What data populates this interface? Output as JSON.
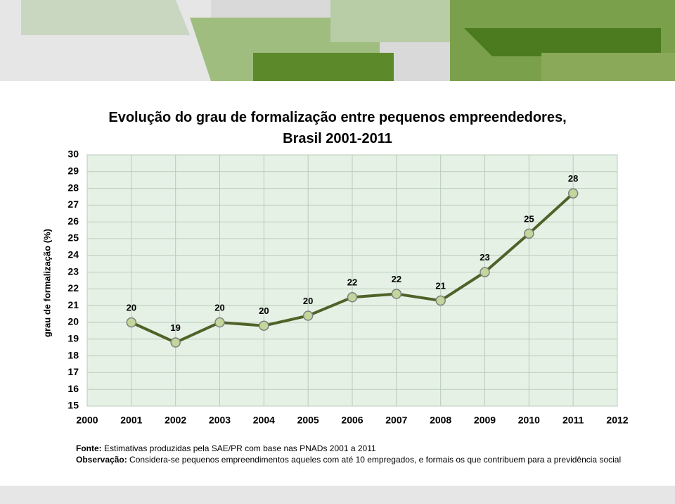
{
  "chart_data": {
    "type": "line",
    "title": "Evolução do grau de formalização entre pequenos empreendedores, Brasil 2001-2011",
    "y_label": "grau de formalização (%)",
    "x": [
      2001,
      2002,
      2003,
      2004,
      2005,
      2006,
      2007,
      2008,
      2009,
      2010,
      2011
    ],
    "series": [
      {
        "name": "grau de formalização",
        "color": "#4f6228",
        "values": [
          20.0,
          18.8,
          20.0,
          19.8,
          20.4,
          21.5,
          21.7,
          21.3,
          23.0,
          25.3,
          27.7
        ],
        "value_labels": [
          "20",
          "19",
          "20",
          "20",
          "20",
          "22",
          "22",
          "21",
          "23",
          "25",
          "28"
        ]
      }
    ],
    "xlim": [
      2000,
      2012
    ],
    "xticks": [
      2000,
      2001,
      2002,
      2003,
      2004,
      2005,
      2006,
      2007,
      2008,
      2009,
      2010,
      2011,
      2012
    ],
    "ylim": [
      15,
      30
    ],
    "yticks": [
      15,
      16,
      17,
      18,
      19,
      20,
      21,
      22,
      23,
      24,
      25,
      26,
      27,
      28,
      29,
      30
    ],
    "grid": true,
    "notes": [
      {
        "label": "Fonte:",
        "text": "Estimativas produzidas pela SAE/PR com base nas PNADs 2001 a 2011"
      },
      {
        "label": "Observação:",
        "text": "Considera-se pequenos empreendimentos aqueles com até 10 empregados, e formais os que contribuem para a previdência social"
      }
    ]
  }
}
